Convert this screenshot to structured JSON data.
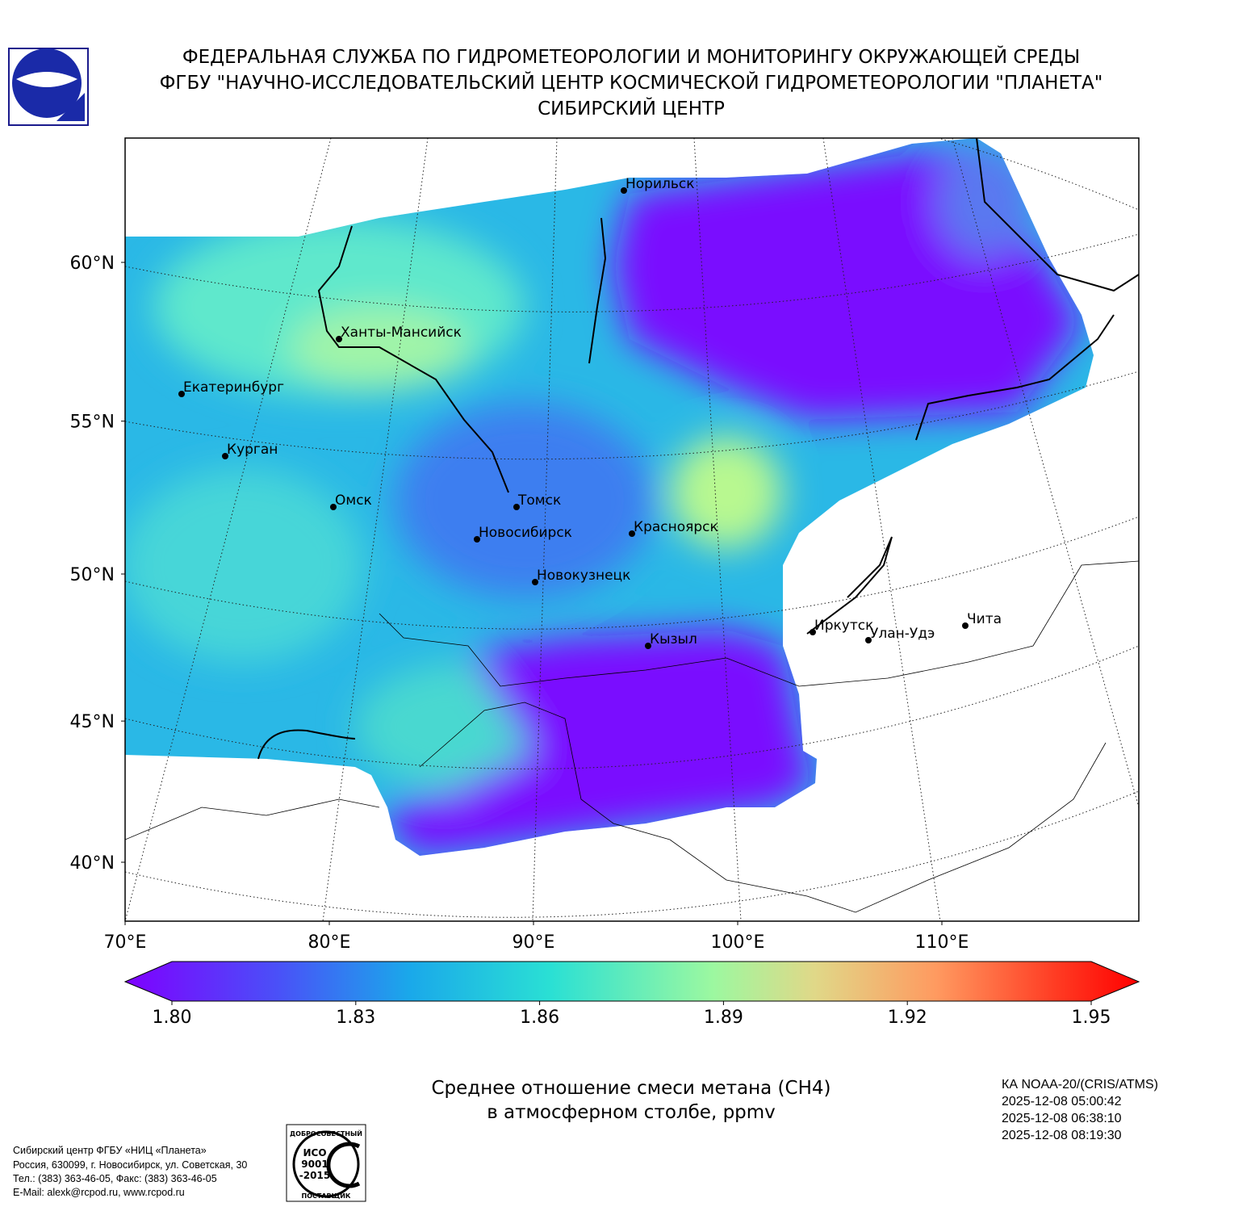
{
  "header": {
    "lines": [
      "ФЕДЕРАЛЬНАЯ СЛУЖБА ПО ГИДРОМЕТЕОРОЛОГИИ И МОНИТОРИНГУ ОКРУЖАЮЩЕЙ СРЕДЫ",
      "ФГБУ \"НАУЧНО-ИССЛЕДОВАТЕЛЬСКИЙ ЦЕНТР КОСМИЧЕСКОЙ ГИДРОМЕТЕОРОЛОГИИ \"ПЛАНЕТА\"",
      "СИБИРСКИЙ ЦЕНТР"
    ]
  },
  "map": {
    "lat_labels": [
      {
        "value": 60,
        "label": "60°N"
      },
      {
        "value": 55,
        "label": "55°N"
      },
      {
        "value": 50,
        "label": "50°N"
      },
      {
        "value": 45,
        "label": "45°N"
      },
      {
        "value": 40,
        "label": "40°N"
      }
    ],
    "lon_labels": [
      {
        "value": 70,
        "label": "70°E"
      },
      {
        "value": 80,
        "label": "80°E"
      },
      {
        "value": 90,
        "label": "90°E"
      },
      {
        "value": 100,
        "label": "100°E"
      },
      {
        "value": 110,
        "label": "110°E"
      }
    ],
    "cities": [
      "Норильск",
      "Ханты-Мансийск",
      "Екатеринбург",
      "Курган",
      "Омск",
      "Томск",
      "Новосибирск",
      "Красноярск",
      "Новокузнецк",
      "Кызыл",
      "Иркутск",
      "Улан-Удэ",
      "Чита"
    ]
  },
  "colorbar": {
    "ticks": [
      {
        "value": 1.8,
        "label": "1.80"
      },
      {
        "value": 1.83,
        "label": "1.83"
      },
      {
        "value": 1.86,
        "label": "1.86"
      },
      {
        "value": 1.89,
        "label": "1.89"
      },
      {
        "value": 1.92,
        "label": "1.92"
      },
      {
        "value": 1.95,
        "label": "1.95"
      }
    ]
  },
  "caption": [
    "Среднее отношение смеси метана (CH4)",
    "в атмосферном столбе, ppmv"
  ],
  "satellite": [
    "КА NOAA-20/(CRIS/ATMS)",
    "2025-12-08 05:00:42",
    "2025-12-08 06:38:10",
    "2025-12-08 08:19:30"
  ],
  "footer": [
    "Сибирский центр ФГБУ «НИЦ «Планета»",
    "Россия, 630099, г. Новосибирск, ул. Советская, 30",
    "Тел.: (383) 363-46-05, Факс: (383) 363-46-05",
    "E-Mail: alexk@rcpod.ru, www.rcpod.ru"
  ],
  "cert": {
    "top": "ДОБРОСОВЕСТНЫЙ",
    "mark": [
      "ИСО",
      "9001",
      "-2015"
    ],
    "bottom": "ПОСТАВЩИК"
  }
}
